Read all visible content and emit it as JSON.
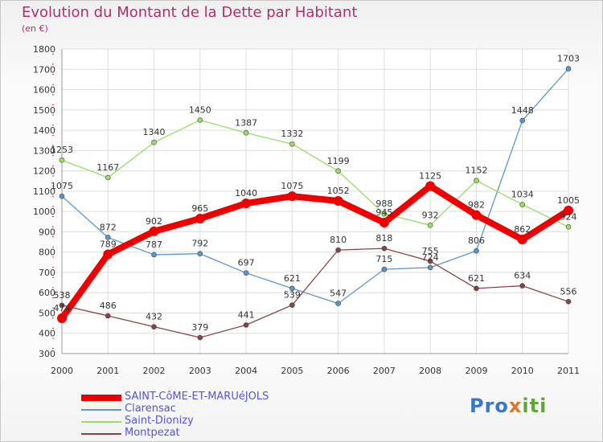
{
  "title": "Evolution du Montant de la Dette par Habitant",
  "unit": "(en €)",
  "logo": {
    "text": "Proxiti",
    "parts": [
      "Pro",
      "x",
      "iti"
    ]
  },
  "chart_data": {
    "type": "line",
    "title": "Evolution du Montant de la Dette par Habitant",
    "ylabel": "(en €)",
    "ylim": [
      300,
      1800
    ],
    "yticks": [
      300,
      400,
      500,
      600,
      700,
      800,
      900,
      1000,
      1100,
      1200,
      1300,
      1400,
      1500,
      1600,
      1700,
      1800
    ],
    "x": [
      "2000",
      "2001",
      "2002",
      "2003",
      "2004",
      "2005",
      "2006",
      "2007",
      "2008",
      "2009",
      "2010",
      "2011"
    ],
    "grid": true,
    "legend": "bottom-left",
    "series": [
      {
        "name": "Clarensac",
        "color": "#5b97c9",
        "values": [
          1075,
          872,
          787,
          792,
          697,
          621,
          547,
          715,
          724,
          806,
          1448,
          1703
        ]
      },
      {
        "name": "Saint-Dionizy",
        "color": "#99dd66",
        "values": [
          1253,
          1167,
          1340,
          1450,
          1387,
          1332,
          1199,
          988,
          932,
          1152,
          1034,
          924
        ]
      },
      {
        "name": "Montpezat",
        "color": "#884444",
        "values": [
          538,
          486,
          432,
          379,
          441,
          539,
          810,
          818,
          755,
          621,
          634,
          556
        ]
      },
      {
        "name": "SAINT-CôME-ET-MARUéJOLS",
        "color": "#ee0000",
        "values": [
          474,
          789,
          902,
          965,
          1040,
          1075,
          1052,
          945,
          1125,
          982,
          862,
          1005
        ]
      }
    ],
    "legend_order": [
      "SAINT-CôME-ET-MARUéJOLS",
      "Clarensac",
      "Saint-Dionizy",
      "Montpezat"
    ]
  }
}
